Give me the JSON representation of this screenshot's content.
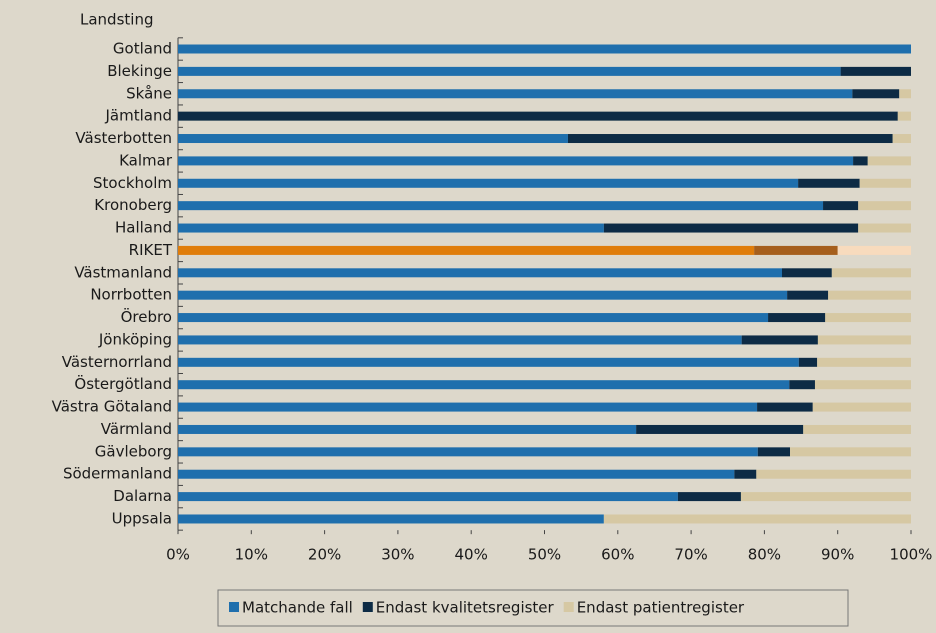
{
  "chart_data": {
    "type": "stacked-barh",
    "y_axis_label": "Landsting",
    "categories": [
      "Gotland",
      "Blekinge",
      "Skåne",
      "Jämtland",
      "Västerbotten",
      "Kalmar",
      "Stockholm",
      "Kronoberg",
      "Halland",
      "RIKET",
      "Västmanland",
      "Norrbotten",
      "Örebro",
      "Jönköping",
      "Västernorrland",
      "Östergötland",
      "Västra Götaland",
      "Värmland",
      "Gävleborg",
      "Södermanland",
      "Dalarna",
      "Uppsala"
    ],
    "series": [
      {
        "name": "Matchande fall",
        "color": "#1f6fad",
        "values": [
          100,
          90.4,
          92.0,
          0,
          53.2,
          92.1,
          84.6,
          88.0,
          58.1,
          78.6,
          82.4,
          83.1,
          80.5,
          76.9,
          84.7,
          83.4,
          79.0,
          62.5,
          79.1,
          75.9,
          68.2,
          58.1
        ]
      },
      {
        "name": "Endast kvalitetsregister",
        "color": "#0d2b45",
        "values": [
          0,
          9.6,
          6.4,
          98.2,
          44.3,
          2.0,
          8.4,
          4.8,
          34.7,
          11.4,
          6.8,
          5.6,
          7.8,
          10.4,
          2.5,
          3.5,
          7.6,
          22.8,
          4.4,
          3.0,
          8.6,
          0
        ]
      },
      {
        "name": "Endast patientregister",
        "color": "#d6c8a3",
        "values": [
          0,
          0,
          1.6,
          1.8,
          2.5,
          5.9,
          7.0,
          7.2,
          7.2,
          10.0,
          10.8,
          11.3,
          11.7,
          12.7,
          12.8,
          13.1,
          13.4,
          14.7,
          16.5,
          21.1,
          23.2,
          41.9
        ]
      }
    ],
    "highlight": {
      "category_index": 9,
      "colors": [
        "#e07d0a",
        "#a65f1c",
        "#f8dbbd"
      ]
    },
    "xlim": [
      0,
      100
    ],
    "xticks": [
      {
        "value": 0,
        "label": "0%"
      },
      {
        "value": 10,
        "label": "10%"
      },
      {
        "value": 20,
        "label": "20%"
      },
      {
        "value": 30,
        "label": "30%"
      },
      {
        "value": 40,
        "label": "40%"
      },
      {
        "value": 50,
        "label": "50%"
      },
      {
        "value": 60,
        "label": "60%"
      },
      {
        "value": 70,
        "label": "70%"
      },
      {
        "value": 80,
        "label": "80%"
      },
      {
        "value": 90,
        "label": "90%"
      },
      {
        "value": 100,
        "label": "100%"
      }
    ],
    "legend": "bottom"
  }
}
